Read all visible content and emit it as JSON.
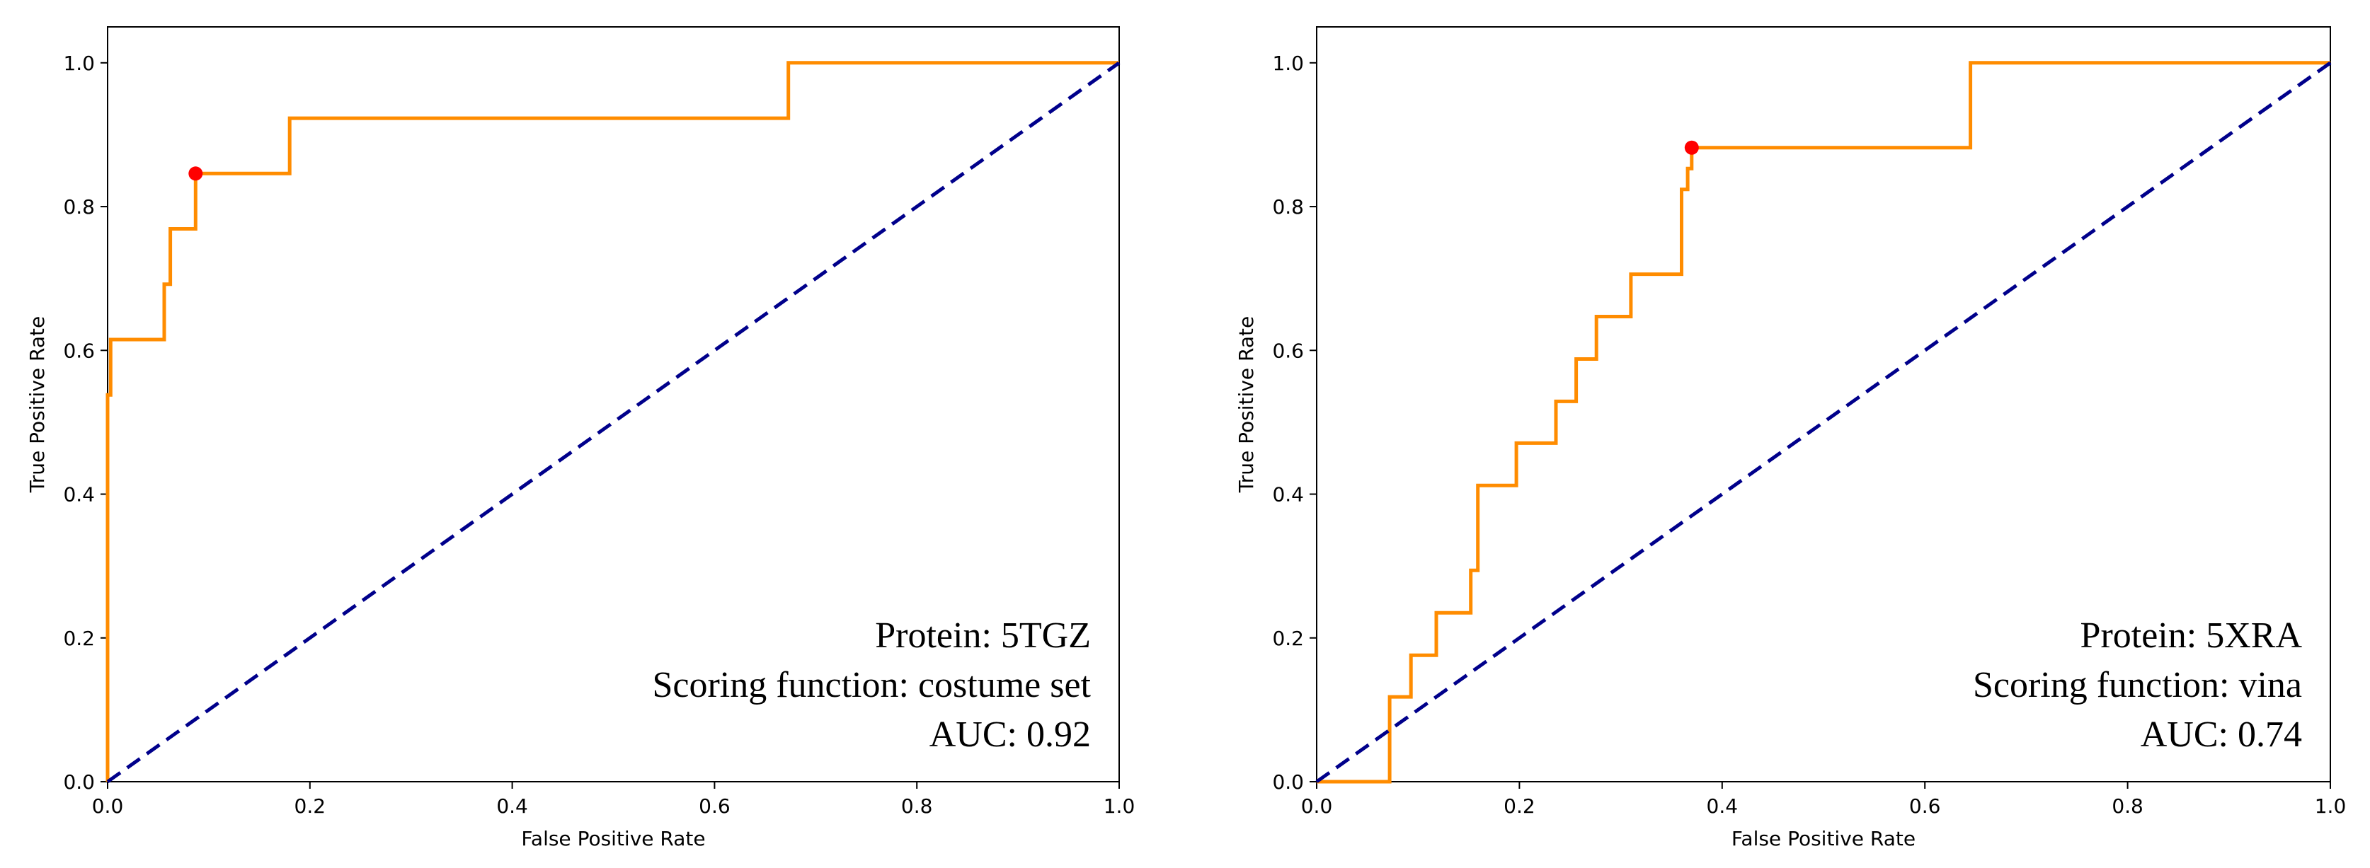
{
  "chart_data": [
    {
      "type": "line",
      "xlabel": "False Positive Rate",
      "ylabel": "True Positive Rate",
      "xlim": [
        0.0,
        1.0
      ],
      "ylim": [
        0.0,
        1.05
      ],
      "xticks": [
        "0.0",
        "0.2",
        "0.4",
        "0.6",
        "0.8",
        "1.0"
      ],
      "yticks": [
        "0.0",
        "0.2",
        "0.4",
        "0.6",
        "0.8",
        "1.0"
      ],
      "grid": false,
      "annotations": [
        "Protein: 5TGZ",
        "Scoring function: costume set",
        "AUC: 0.92"
      ],
      "colors": {
        "roc": "#ff8c00",
        "diagonal": "#00008b",
        "marker": "#ff0000"
      },
      "series": [
        {
          "kind": "roc",
          "x": [
            0.0,
            0.0,
            0.003,
            0.003,
            0.056,
            0.056,
            0.062,
            0.062,
            0.087,
            0.087,
            0.18,
            0.18,
            0.673,
            0.673,
            1.0
          ],
          "y": [
            0.0,
            0.538,
            0.538,
            0.615,
            0.615,
            0.692,
            0.692,
            0.769,
            0.769,
            0.846,
            0.846,
            0.923,
            0.923,
            1.0,
            1.0
          ]
        },
        {
          "kind": "chance",
          "x": [
            0.0,
            1.0
          ],
          "y": [
            0.0,
            1.0
          ]
        }
      ],
      "optimal_point": {
        "x": 0.087,
        "y": 0.846
      }
    },
    {
      "type": "line",
      "xlabel": "False Positive Rate",
      "ylabel": "True Positive Rate",
      "xlim": [
        0.0,
        1.0
      ],
      "ylim": [
        0.0,
        1.05
      ],
      "xticks": [
        "0.0",
        "0.2",
        "0.4",
        "0.6",
        "0.8",
        "1.0"
      ],
      "yticks": [
        "0.0",
        "0.2",
        "0.4",
        "0.6",
        "0.8",
        "1.0"
      ],
      "grid": false,
      "annotations": [
        "Protein: 5XRA",
        "Scoring function: vina",
        "AUC: 0.74"
      ],
      "colors": {
        "roc": "#ff8c00",
        "diagonal": "#00008b",
        "marker": "#ff0000"
      },
      "series": [
        {
          "kind": "roc",
          "x": [
            0.0,
            0.072,
            0.072,
            0.093,
            0.093,
            0.118,
            0.118,
            0.152,
            0.152,
            0.159,
            0.159,
            0.197,
            0.197,
            0.236,
            0.236,
            0.256,
            0.256,
            0.276,
            0.276,
            0.31,
            0.31,
            0.36,
            0.36,
            0.366,
            0.366,
            0.37,
            0.37,
            0.645,
            0.645,
            1.0
          ],
          "y": [
            0.0,
            0.0,
            0.118,
            0.118,
            0.176,
            0.176,
            0.235,
            0.235,
            0.294,
            0.294,
            0.412,
            0.412,
            0.471,
            0.471,
            0.529,
            0.529,
            0.588,
            0.588,
            0.647,
            0.647,
            0.706,
            0.706,
            0.824,
            0.824,
            0.853,
            0.853,
            0.882,
            0.882,
            1.0,
            1.0
          ]
        },
        {
          "kind": "chance",
          "x": [
            0.0,
            1.0
          ],
          "y": [
            0.0,
            1.0
          ]
        }
      ],
      "optimal_point": {
        "x": 0.37,
        "y": 0.882
      }
    }
  ]
}
